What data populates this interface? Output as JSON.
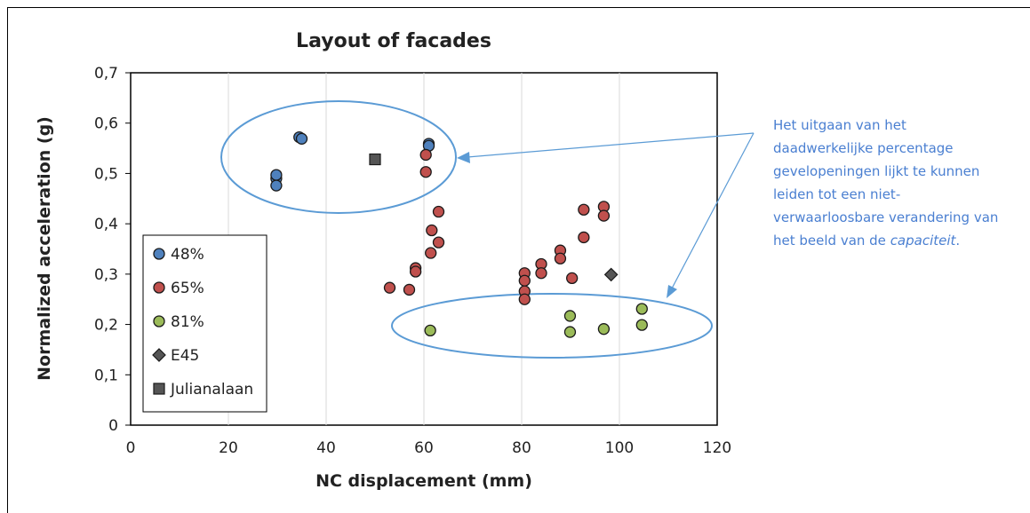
{
  "chart_data": {
    "type": "scatter",
    "title": "Layout of facades",
    "xlabel": "NC displacement (mm)",
    "ylabel": "Normalized acceleration (g)",
    "xlim": [
      0,
      120
    ],
    "ylim": [
      0,
      0.7
    ],
    "x_ticks": [
      "0",
      "20",
      "40",
      "60",
      "80",
      "100",
      "120"
    ],
    "y_ticks": [
      "0",
      "0,1",
      "0,2",
      "0,3",
      "0,4",
      "0,5",
      "0,6",
      "0,7"
    ],
    "grid": "vertical",
    "legend_position": "bottom-left",
    "series": [
      {
        "name": "48%",
        "marker": "circle",
        "color": "#4f81bd",
        "points": [
          [
            29.8,
            0.49
          ],
          [
            29.8,
            0.497
          ],
          [
            29.8,
            0.476
          ],
          [
            34.5,
            0.572
          ],
          [
            35,
            0.569
          ],
          [
            61,
            0.559
          ],
          [
            61,
            0.555
          ]
        ]
      },
      {
        "name": "65%",
        "marker": "circle",
        "color": "#c0504d",
        "points": [
          [
            53,
            0.273
          ],
          [
            57,
            0.269
          ],
          [
            58.3,
            0.312
          ],
          [
            58.3,
            0.305
          ],
          [
            60.4,
            0.537
          ],
          [
            60.4,
            0.503
          ],
          [
            61.4,
            0.342
          ],
          [
            61.6,
            0.387
          ],
          [
            63,
            0.424
          ],
          [
            63,
            0.363
          ],
          [
            80.6,
            0.302
          ],
          [
            80.6,
            0.287
          ],
          [
            80.6,
            0.266
          ],
          [
            80.6,
            0.25
          ],
          [
            84,
            0.32
          ],
          [
            84,
            0.302
          ],
          [
            87.9,
            0.347
          ],
          [
            87.9,
            0.331
          ],
          [
            90.3,
            0.292
          ],
          [
            92.7,
            0.428
          ],
          [
            92.7,
            0.373
          ],
          [
            96.8,
            0.434
          ],
          [
            96.8,
            0.416
          ]
        ]
      },
      {
        "name": "81%",
        "marker": "circle",
        "color": "#9bbb59",
        "points": [
          [
            61.3,
            0.188
          ],
          [
            89.9,
            0.217
          ],
          [
            89.9,
            0.185
          ],
          [
            96.8,
            0.191
          ],
          [
            104.6,
            0.231
          ],
          [
            104.6,
            0.199
          ]
        ]
      },
      {
        "name": "E45",
        "marker": "diamond",
        "color": "#555555",
        "points": [
          [
            98.3,
            0.299
          ]
        ]
      },
      {
        "name": "Julianalaan",
        "marker": "square",
        "color": "#555555",
        "points": [
          [
            50,
            0.528
          ]
        ]
      }
    ]
  },
  "annotation": {
    "text_main": "Het uitgaan van het daadwerkelijke percentage gevelopeningen lijkt te kunnen leiden tot een niet-verwaarloosbare verandering van het beeld van de ",
    "text_italic": "capaciteit",
    "text_end": "."
  },
  "colors": {
    "annotation": "#4a7fd1",
    "ellipse": "#5b9bd5",
    "axis": "#000000"
  }
}
